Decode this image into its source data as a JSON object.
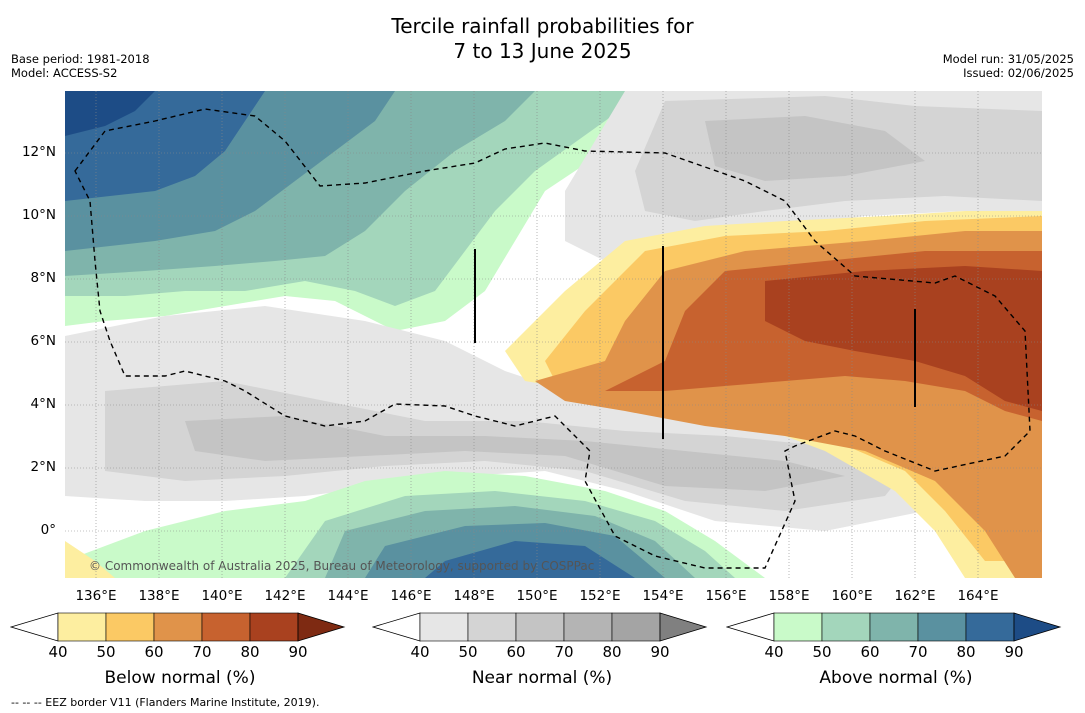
{
  "title_line1": "Tercile rainfall probabilities for",
  "title_line2": "7 to 13 June 2025",
  "base_period": "Base period: 1981-2018",
  "model": "Model: ACCESS-S2",
  "model_run": "Model run: 31/05/2025",
  "issued": "Issued: 02/06/2025",
  "lat_labels": [
    "12°N",
    "10°N",
    "8°N",
    "6°N",
    "4°N",
    "2°N",
    "0°"
  ],
  "lon_labels": [
    "136°E",
    "138°E",
    "140°E",
    "142°E",
    "144°E",
    "146°E",
    "148°E",
    "150°E",
    "152°E",
    "154°E",
    "156°E",
    "158°E",
    "160°E",
    "162°E",
    "164°E"
  ],
  "copyright": "© Commonwealth of Australia 2025, Bureau of Meteorology, supported by COSPPac",
  "footnote": "-- -- -- EEZ border V11 (Flanders Marine Institute, 2019).",
  "colorbars": {
    "below": {
      "title": "Below normal (%)",
      "ticks": [
        "40",
        "50",
        "60",
        "70",
        "80",
        "90"
      ],
      "colors": [
        "#fdeea0",
        "#fbc964",
        "#e0934a",
        "#c7622f",
        "#a9411f",
        "#7e2a12"
      ]
    },
    "near": {
      "title": "Near normal (%)",
      "ticks": [
        "40",
        "50",
        "60",
        "70",
        "80",
        "90"
      ],
      "colors": [
        "#e6e6e6",
        "#d4d4d4",
        "#c4c4c4",
        "#b4b4b4",
        "#a4a4a4",
        "#808080"
      ]
    },
    "above": {
      "title": "Above normal (%)",
      "ticks": [
        "40",
        "50",
        "60",
        "70",
        "80",
        "90"
      ],
      "colors": [
        "#c9fac9",
        "#a3d6bb",
        "#7fb4ab",
        "#5a91a0",
        "#356a9a",
        "#1d4c86"
      ]
    }
  }
}
